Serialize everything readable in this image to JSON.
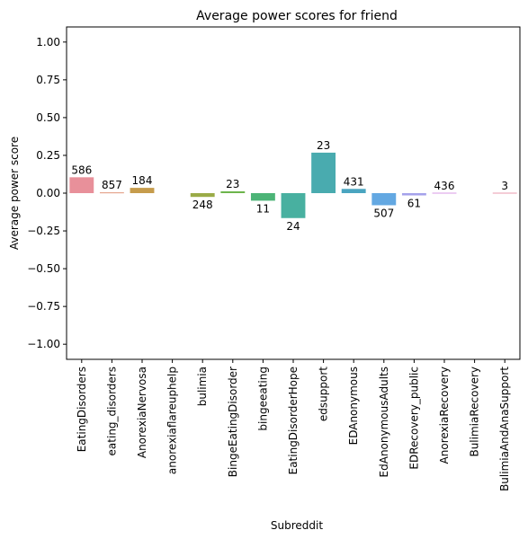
{
  "chart_data": {
    "type": "bar",
    "title": "Average power scores for friend",
    "xlabel": "Subreddit",
    "ylabel": "Average power score",
    "ylim": [
      -1.1,
      1.1
    ],
    "yticks": [
      -1.0,
      -0.75,
      -0.5,
      -0.25,
      0.0,
      0.25,
      0.5,
      0.75,
      1.0
    ],
    "ytick_labels": [
      "−1.00",
      "−0.75",
      "−0.50",
      "−0.25",
      "0.00",
      "0.25",
      "0.50",
      "0.75",
      "1.00"
    ],
    "grid": false,
    "categories": [
      "EatingDisorders",
      "eating_disorders",
      "AnorexiaNervosa",
      "anorexiaflareuphelp",
      "bulimia",
      "BingeEatingDisorder",
      "bingeeating",
      "EatingDisorderHope",
      "edsupport",
      "EDAnonymous",
      "EdAnonymousAdults",
      "EDRecovery_public",
      "AnorexiaRecovery",
      "BulimiaRecovery",
      "BulimiaAndAnaSupport"
    ],
    "values": [
      0.105,
      0.005,
      0.035,
      null,
      -0.025,
      0.012,
      -0.05,
      -0.165,
      0.268,
      0.028,
      -0.08,
      -0.015,
      0.0,
      null,
      0.0
    ],
    "data_labels": [
      "586",
      "857",
      "184",
      "",
      "248",
      "23",
      "11",
      "24",
      "23",
      "431",
      "507",
      "61",
      "436",
      "",
      "3"
    ],
    "colors": [
      "#e8909a",
      "#e0957a",
      "#c69c4c",
      "#b0a44a",
      "#9aab47",
      "#6db54c",
      "#4cb477",
      "#48b0a0",
      "#49abaf",
      "#4aa5c0",
      "#63a8e2",
      "#a5a2eb",
      "#d89ae6",
      "#e695ce",
      "#e898ae"
    ]
  }
}
